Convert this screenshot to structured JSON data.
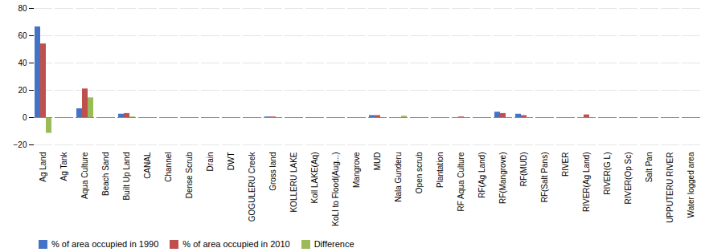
{
  "chart_data": {
    "type": "bar",
    "categories": [
      "Ag Land",
      "Ag Tank",
      "Aqua Culture",
      "Beach Sand",
      "Built Up Land",
      "CANAL",
      "Channel",
      "Dense Scrub",
      "Drain",
      "DWT",
      "GOGULERU Creek",
      "Gross land",
      "KOLLERU LAKE",
      "Koll LAKE(Aq)",
      "KoLI to Flood(Aug...)",
      "Mangrove",
      "MUD",
      "Nala Gunderu",
      "Open scrub",
      "Plantation",
      "RF Aqua Culture",
      "RF(Ag Land)",
      "RF(Mangrove)",
      "RF(MUD)",
      "RF(Salt Pans)",
      "RIVER",
      "RIVER(Ag Land)",
      "RIVER(G L)",
      "RIVER(Op Sc)",
      "Salt Pan",
      "UPPUTERU RIVER",
      "Water logged area"
    ],
    "series": [
      {
        "name": "% of area occupied in 1990",
        "color": "#4472C4",
        "values": [
          66.5,
          0.0,
          6.5,
          0.0,
          2.5,
          0.0,
          0.0,
          0.0,
          0.0,
          0.0,
          0.0,
          0.5,
          0.0,
          0.0,
          0.0,
          0.0,
          1.5,
          0.0,
          0.0,
          0.0,
          0.0,
          0.0,
          4.0,
          2.5,
          0.0,
          0.0,
          0.0,
          0.0,
          0.0,
          0.0,
          0.0,
          0.0
        ]
      },
      {
        "name": "% of area occupied in 2010",
        "color": "#C0504D",
        "values": [
          54.0,
          0.0,
          21.0,
          -0.5,
          3.0,
          0.0,
          0.0,
          0.0,
          0.0,
          0.0,
          0.0,
          0.5,
          0.0,
          0.0,
          0.0,
          0.0,
          1.5,
          0.0,
          0.0,
          0.0,
          0.5,
          0.0,
          3.0,
          1.5,
          0.0,
          0.0,
          2.0,
          0.0,
          0.0,
          0.0,
          0.0,
          0.0
        ]
      },
      {
        "name": "Difference",
        "color": "#9BBB59",
        "values": [
          -11.5,
          0.0,
          14.5,
          0.0,
          0.5,
          0.0,
          0.0,
          0.0,
          0.0,
          0.0,
          0.0,
          0.0,
          0.0,
          0.0,
          0.0,
          0.0,
          0.0,
          1.0,
          0.0,
          0.0,
          0.0,
          0.0,
          0.0,
          0.0,
          0.0,
          0.0,
          0.0,
          0.0,
          0.0,
          0.0,
          0.0,
          0.0
        ]
      }
    ],
    "ylim": [
      -20.0,
      80.0
    ],
    "yticks": [
      -20.0,
      0.0,
      20.0,
      40.0,
      60.0,
      80.0
    ],
    "grid": true,
    "legend": "lower left"
  }
}
